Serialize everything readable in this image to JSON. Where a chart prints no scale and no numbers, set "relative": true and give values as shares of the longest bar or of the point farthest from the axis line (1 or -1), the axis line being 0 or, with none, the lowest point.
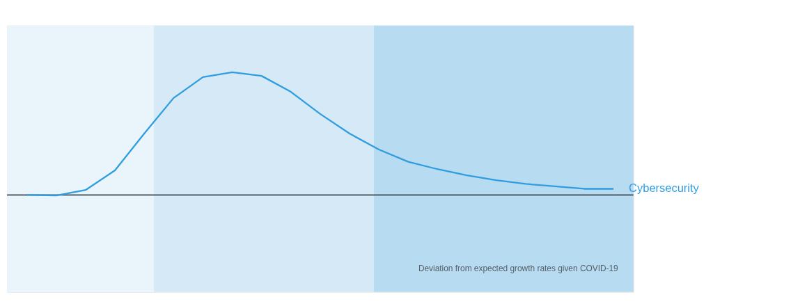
{
  "chart_data": {
    "type": "line",
    "relative": true,
    "categories": [
      null,
      null,
      null,
      null,
      null,
      null,
      null,
      null,
      null,
      null,
      null,
      null,
      null,
      null,
      null,
      null,
      null,
      null,
      null,
      null,
      null
    ],
    "series": [
      {
        "name": "Cybersecurity",
        "color": "#2f9de0",
        "values": [
          0,
          -0.005,
          0.04,
          0.2,
          0.5,
          0.79,
          0.96,
          1,
          0.97,
          0.84,
          0.66,
          0.5,
          0.37,
          0.27,
          0.21,
          0.16,
          0.12,
          0.09,
          0.07,
          0.05,
          0.05
        ]
      }
    ],
    "annotations": [
      "Deviation from expected growth rates given COVID-19"
    ]
  }
}
